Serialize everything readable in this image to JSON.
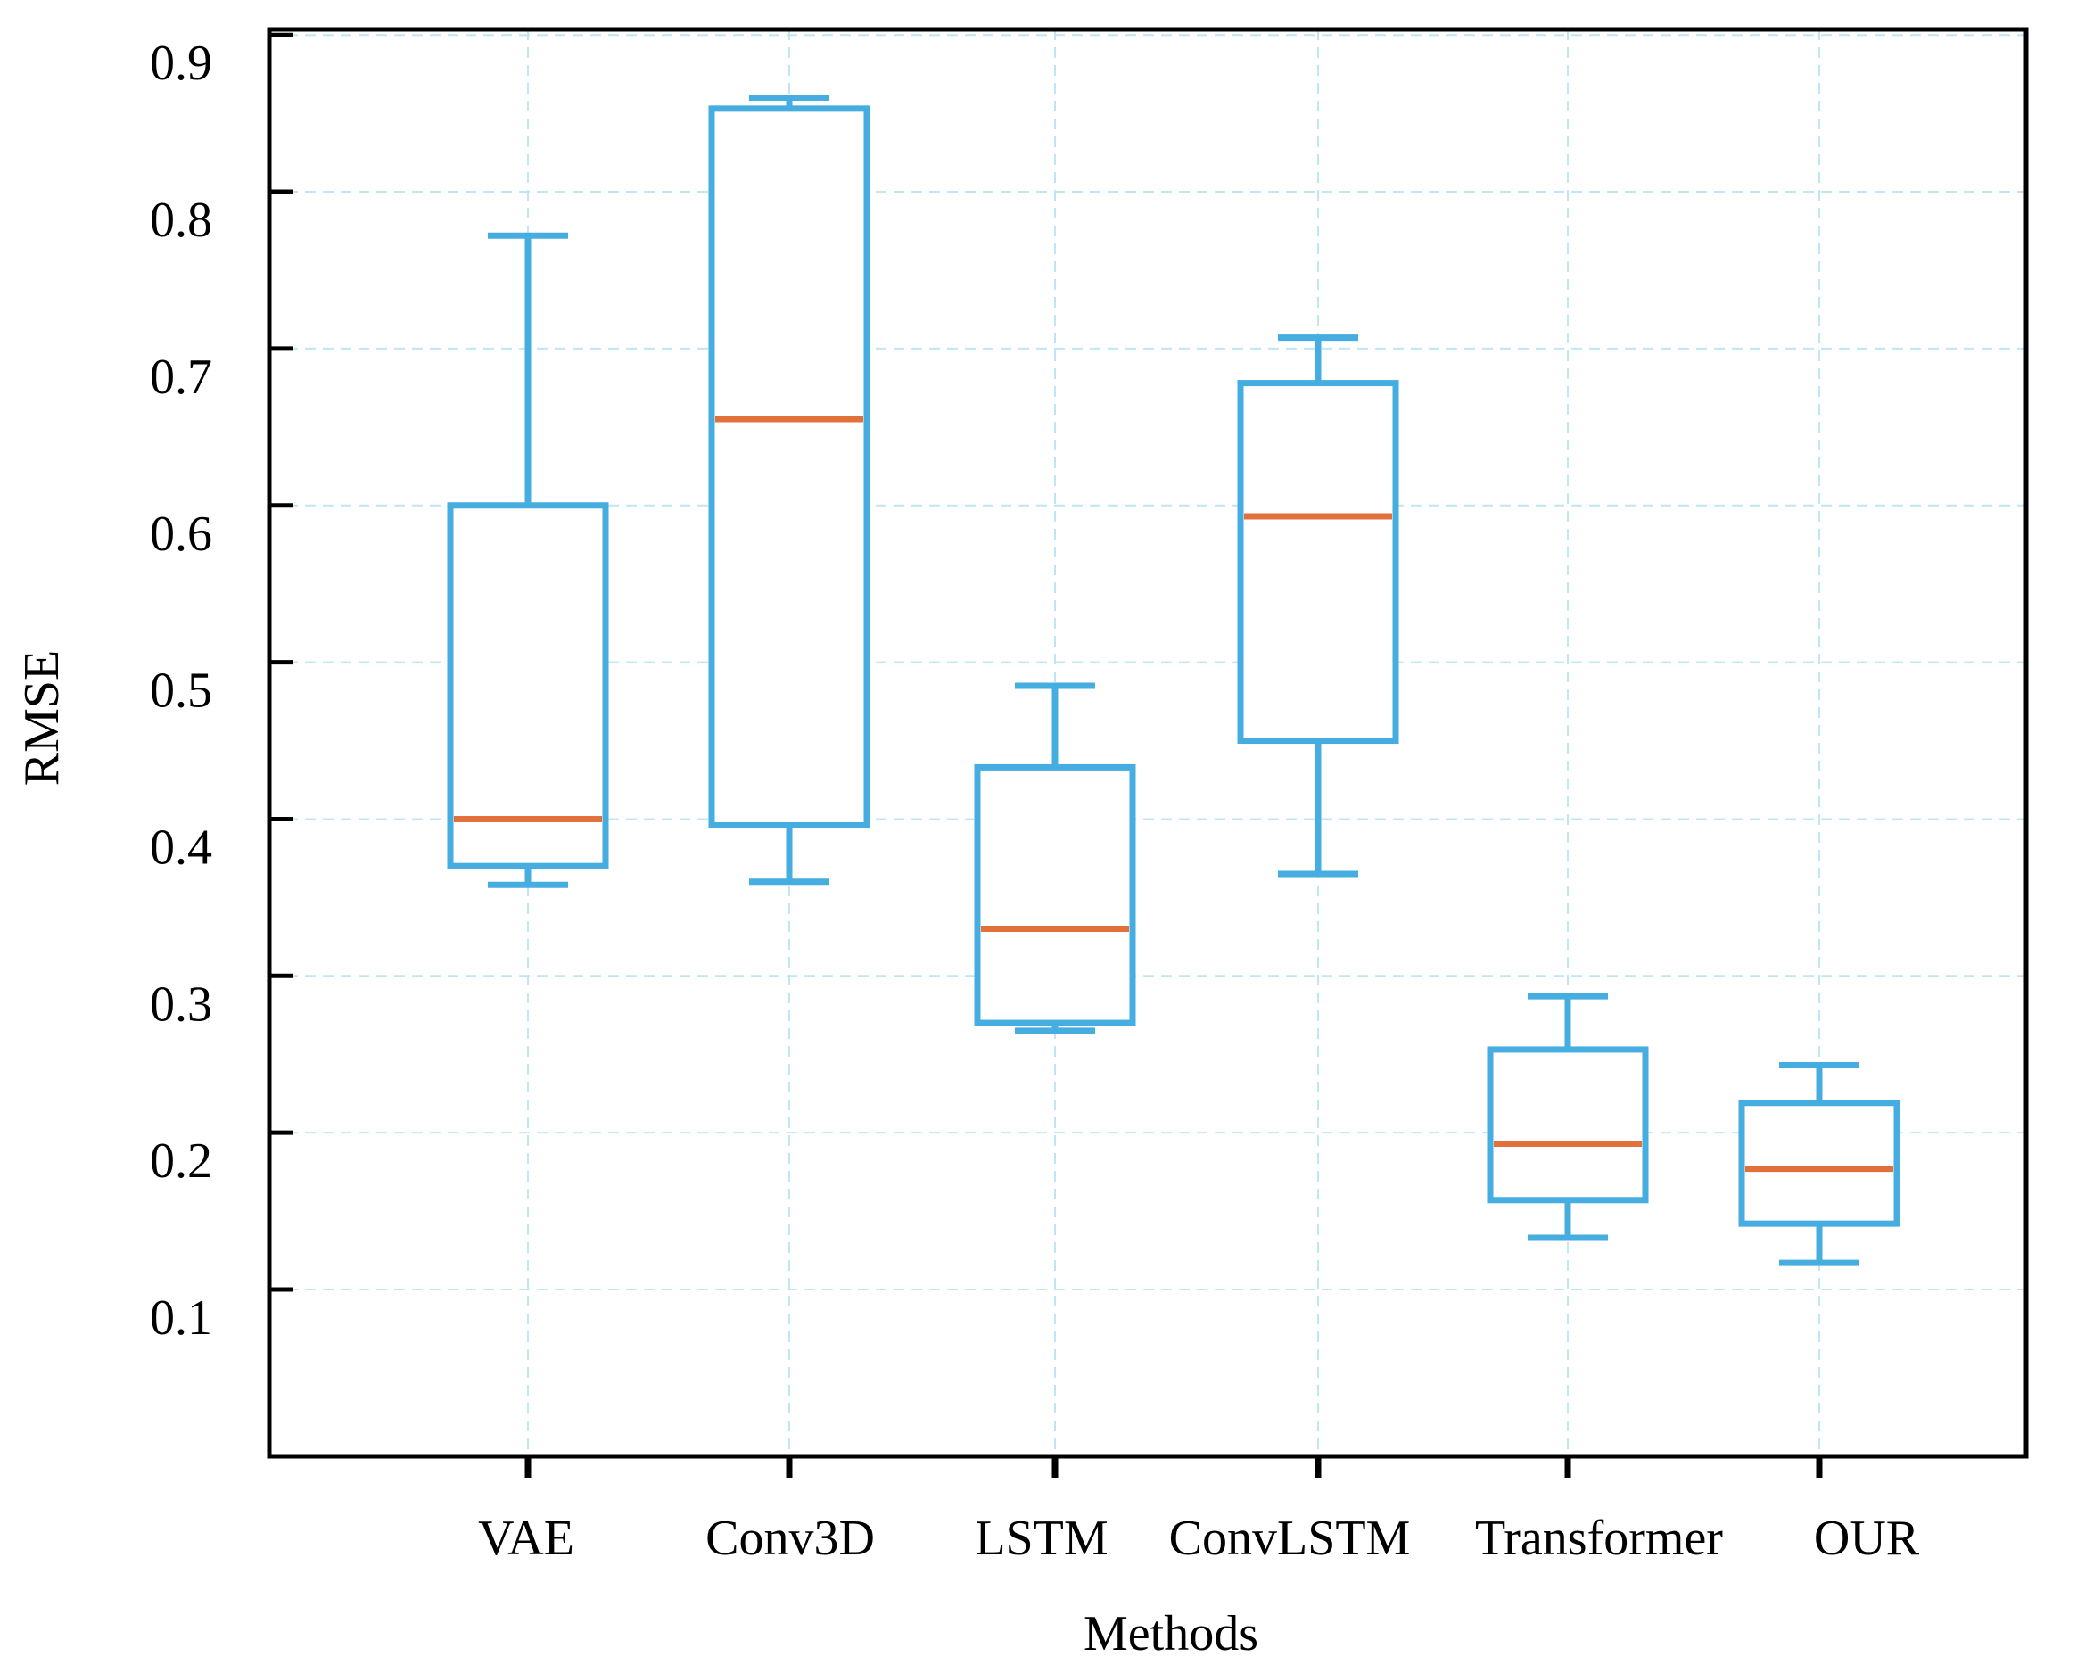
{
  "chart_data": {
    "type": "boxplot",
    "title": "",
    "xlabel": "Methods",
    "ylabel": "RMSE",
    "ylim": [
      0.0,
      0.9
    ],
    "yticks": [
      0.1,
      0.2,
      0.3,
      0.4,
      0.5,
      0.6,
      0.7,
      0.8,
      0.9
    ],
    "ytick_labels": [
      "0.1",
      "0.2",
      "0.3",
      "0.4",
      "0.5",
      "0.6",
      "0.7",
      "0.8",
      "0.9"
    ],
    "grid": true,
    "categories": [
      "VAE",
      "Conv3D",
      "LSTM",
      "ConvLSTM",
      "Transformer",
      "OUR"
    ],
    "boxes": [
      {
        "name": "VAE",
        "whisker_low": 0.358,
        "q1": 0.37,
        "median": 0.4,
        "q3": 0.6,
        "whisker_high": 0.772
      },
      {
        "name": "Conv3D",
        "whisker_low": 0.36,
        "q1": 0.396,
        "median": 0.655,
        "q3": 0.853,
        "whisker_high": 0.86
      },
      {
        "name": "LSTM",
        "whisker_low": 0.265,
        "q1": 0.27,
        "median": 0.33,
        "q3": 0.433,
        "whisker_high": 0.485
      },
      {
        "name": "ConvLSTM",
        "whisker_low": 0.365,
        "q1": 0.45,
        "median": 0.593,
        "q3": 0.678,
        "whisker_high": 0.707
      },
      {
        "name": "Transformer",
        "whisker_low": 0.133,
        "q1": 0.157,
        "median": 0.193,
        "q3": 0.253,
        "whisker_high": 0.287
      },
      {
        "name": "OUR",
        "whisker_low": 0.117,
        "q1": 0.142,
        "median": 0.177,
        "q3": 0.219,
        "whisker_high": 0.243
      }
    ],
    "colors": {
      "box": "#46ade0",
      "median": "#e2703a",
      "grid": "#bfe6f4",
      "axis": "#000000"
    }
  }
}
